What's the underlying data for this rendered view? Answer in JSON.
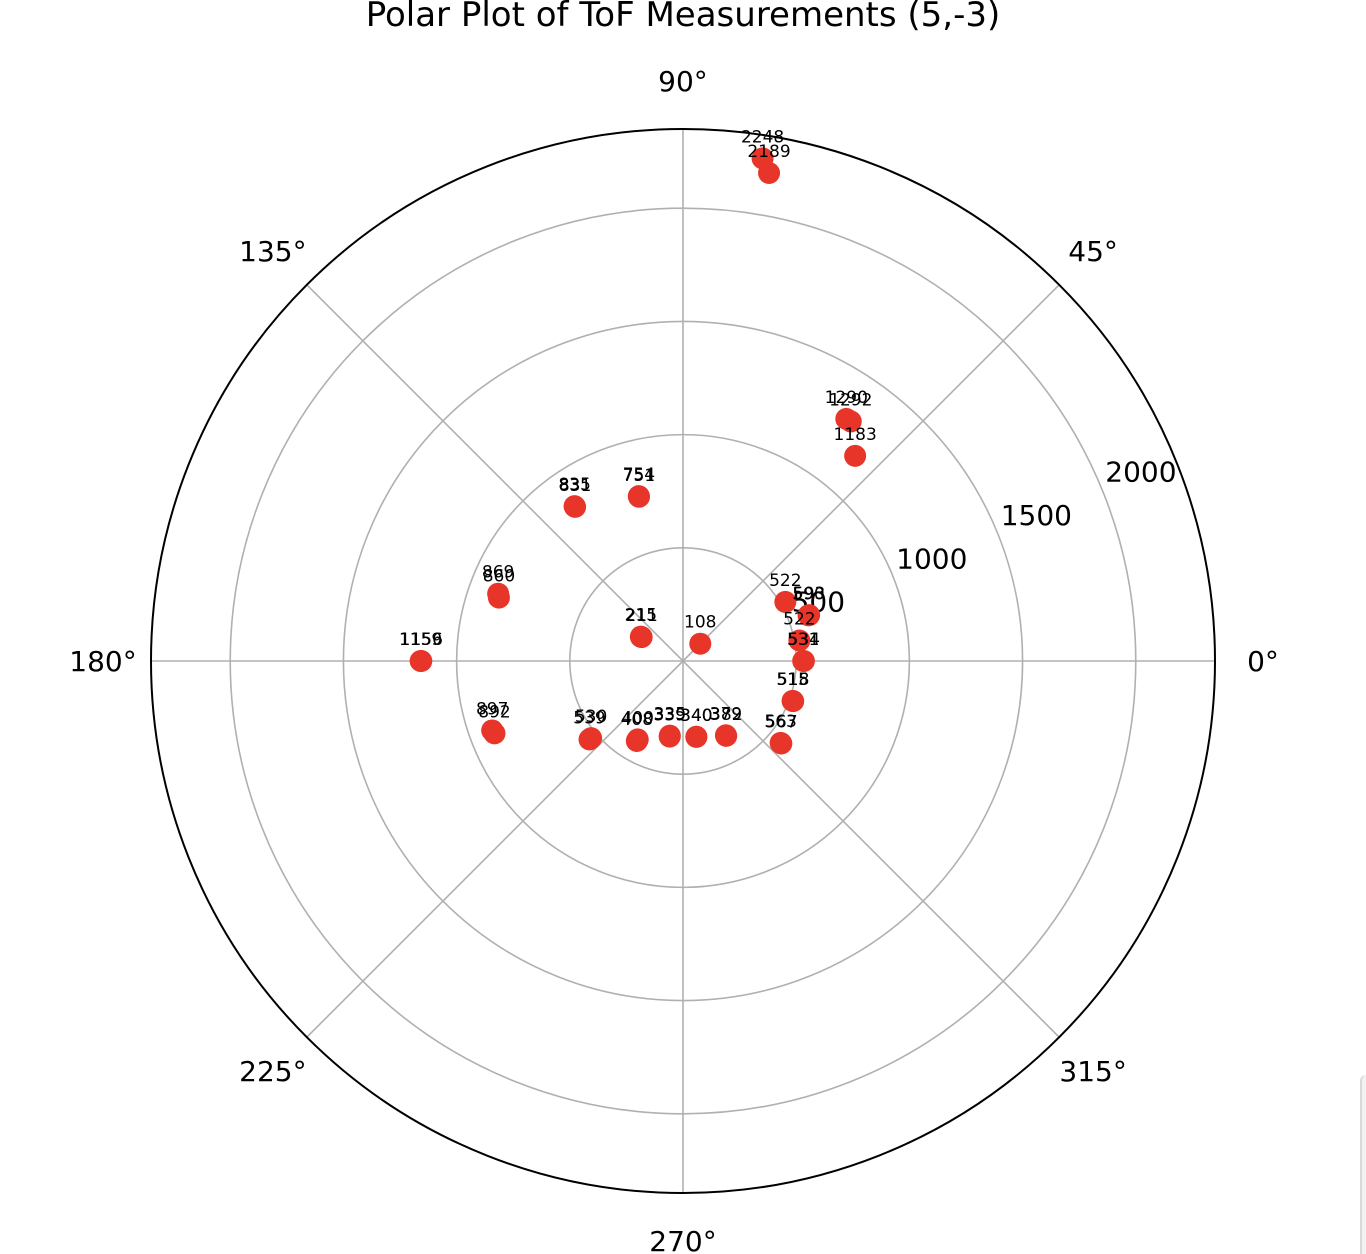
{
  "chart_data": {
    "type": "scatter",
    "projection": "polar",
    "title": "Polar Plot of ToF Measurements (5,-3)",
    "rlim": [
      0,
      2350
    ],
    "r_ticks": [
      500,
      1000,
      1500,
      2000
    ],
    "theta_ticks_deg": [
      0,
      45,
      90,
      135,
      180,
      225,
      270,
      315
    ],
    "theta_tick_labels": [
      "0°",
      "45°",
      "90°",
      "135°",
      "180°",
      "225°",
      "270°",
      "315°"
    ],
    "marker_color": "#e8352a",
    "grid": true,
    "points": [
      {
        "theta": 0,
        "r": 534
      },
      {
        "theta": 0,
        "r": 531
      },
      {
        "theta": 10,
        "r": 522
      },
      {
        "theta": 20,
        "r": 593
      },
      {
        "theta": 20,
        "r": 590
      },
      {
        "theta": 30,
        "r": 522
      },
      {
        "theta": 50,
        "r": 1183
      },
      {
        "theta": 55,
        "r": 1292
      },
      {
        "theta": 56,
        "r": 1290
      },
      {
        "theta": 80,
        "r": 2189
      },
      {
        "theta": 81,
        "r": 2248
      },
      {
        "theta": 45,
        "r": 108
      },
      {
        "theta": 105,
        "r": 754
      },
      {
        "theta": 105,
        "r": 751
      },
      {
        "theta": 125,
        "r": 835
      },
      {
        "theta": 125,
        "r": 831
      },
      {
        "theta": 150,
        "r": 215
      },
      {
        "theta": 150,
        "r": 211
      },
      {
        "theta": 160,
        "r": 869
      },
      {
        "theta": 161,
        "r": 860
      },
      {
        "theta": 180,
        "r": 1159
      },
      {
        "theta": 180,
        "r": 1156
      },
      {
        "theta": 200,
        "r": 897
      },
      {
        "theta": 201,
        "r": 892
      },
      {
        "theta": 220,
        "r": 539
      },
      {
        "theta": 220,
        "r": 530
      },
      {
        "theta": 240,
        "r": 408
      },
      {
        "theta": 240,
        "r": 400
      },
      {
        "theta": 260,
        "r": 339
      },
      {
        "theta": 260,
        "r": 335
      },
      {
        "theta": 280,
        "r": 340
      },
      {
        "theta": 280,
        "r": 340
      },
      {
        "theta": 300,
        "r": 379
      },
      {
        "theta": 300,
        "r": 382
      },
      {
        "theta": 320,
        "r": 563
      },
      {
        "theta": 320,
        "r": 567
      },
      {
        "theta": 340,
        "r": 518
      },
      {
        "theta": 340,
        "r": 515
      }
    ]
  }
}
